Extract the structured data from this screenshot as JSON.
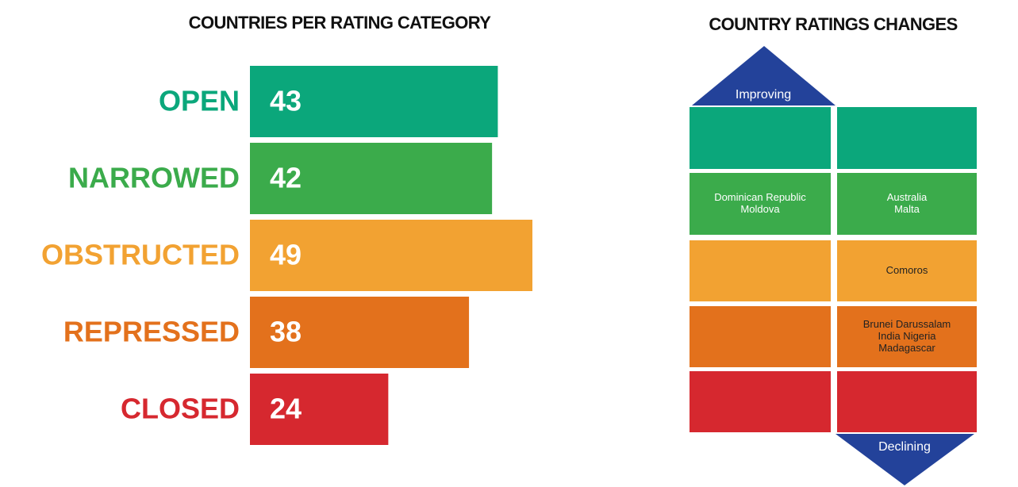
{
  "chart_data": {
    "type": "bar",
    "title": "COUNTRIES PER RATING CATEGORY",
    "categories": [
      "OPEN",
      "NARROWED",
      "OBSTRUCTED",
      "REPRESSED",
      "CLOSED"
    ],
    "values": [
      43,
      42,
      49,
      38,
      24
    ],
    "colors": [
      "#0ba77b",
      "#3bab4b",
      "#f2a232",
      "#e3711c",
      "#d6282f"
    ]
  },
  "ratings_changes": {
    "title": "COUNTRY RATINGS CHANGES",
    "improving": "Improving",
    "declining": "Declining",
    "arrow_color": "#23429a",
    "rows": [
      {
        "color": "#0ba77b",
        "text_color": "#ffffff",
        "left": [],
        "right": []
      },
      {
        "color": "#3bab4b",
        "text_color": "#ffffff",
        "left": [
          "Dominican Republic",
          "Moldova"
        ],
        "right": [
          "Australia",
          "Malta"
        ]
      },
      {
        "color": "#f2a232",
        "text_color": "#222222",
        "left": [],
        "right": [
          "Comoros"
        ]
      },
      {
        "color": "#e3711c",
        "text_color": "#222222",
        "left": [],
        "right": [
          "Brunei Darussalam",
          "India Nigeria",
          "Madagascar"
        ]
      },
      {
        "color": "#d6282f",
        "text_color": "#ffffff",
        "left": [],
        "right": []
      }
    ]
  }
}
